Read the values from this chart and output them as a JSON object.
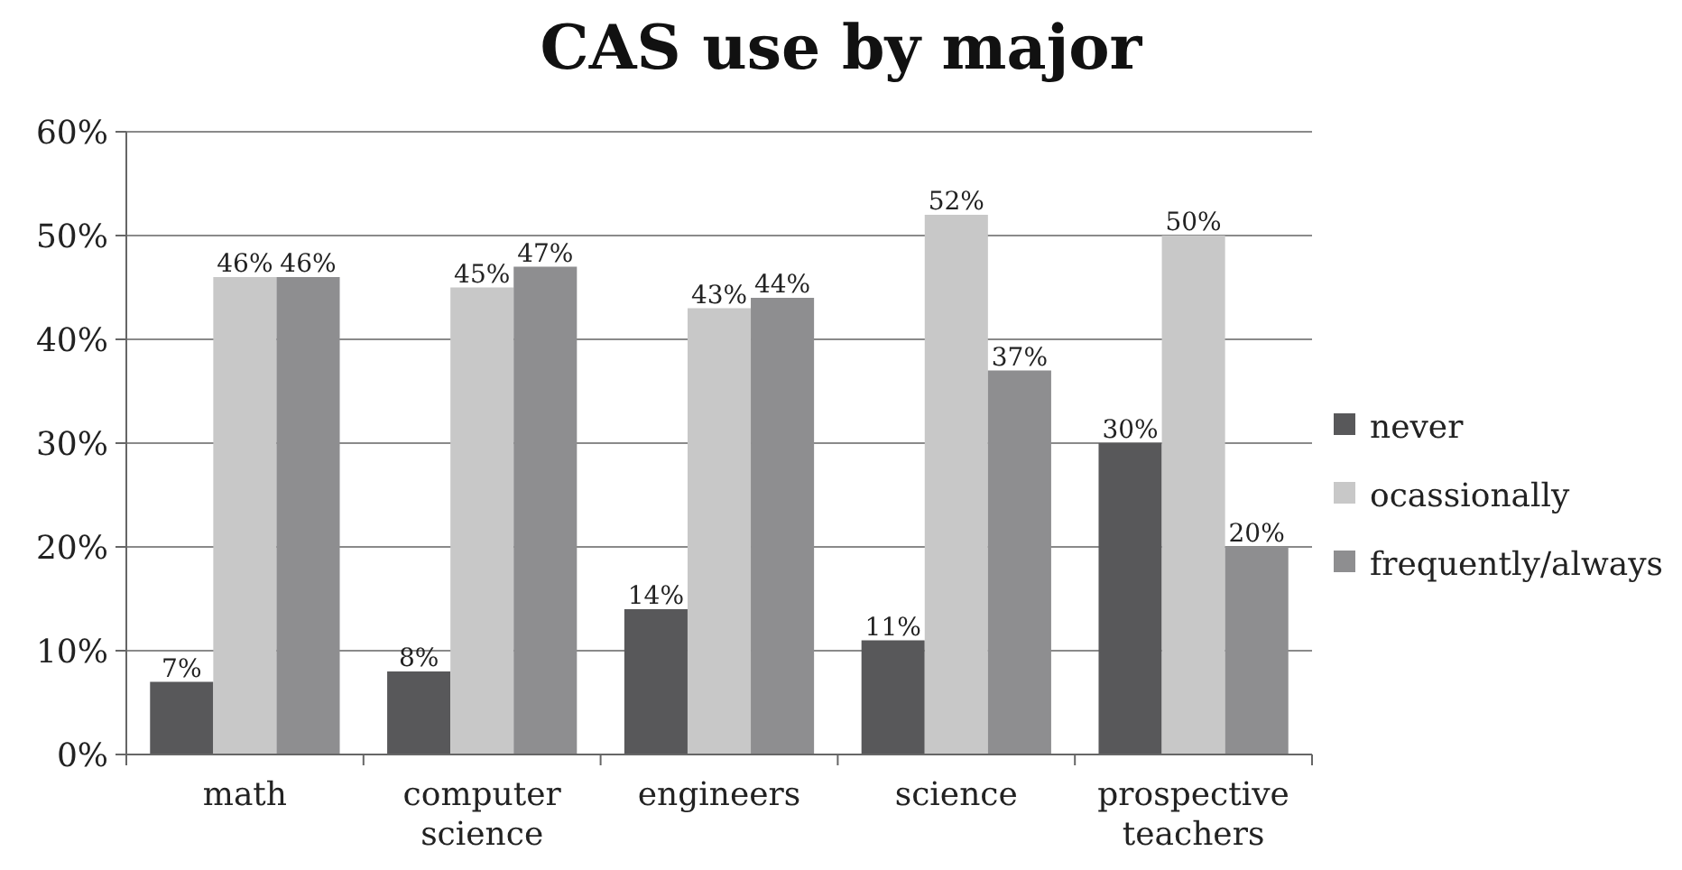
{
  "chart_data": {
    "type": "bar",
    "title": "CAS use by major",
    "categories": [
      "math",
      "computer science",
      "engineers",
      "science",
      "prospective teachers"
    ],
    "series": [
      {
        "name": "never",
        "color": "#58585a",
        "values": [
          7,
          8,
          14,
          11,
          30
        ],
        "value_labels": [
          "7%",
          "8%",
          "14%",
          "11%",
          "30%"
        ]
      },
      {
        "name": "ocassionally",
        "color": "#c8c8c8",
        "values": [
          46,
          45,
          43,
          52,
          50
        ],
        "value_labels": [
          "46%",
          "45%",
          "43%",
          "52%",
          "50%"
        ]
      },
      {
        "name": "frequently/always",
        "color": "#8e8e90",
        "values": [
          46,
          47,
          44,
          37,
          20
        ],
        "value_labels": [
          "46%",
          "47%",
          "44%",
          "37%",
          "20%"
        ]
      }
    ],
    "ylim": [
      0,
      60
    ],
    "yticks": [
      {
        "value": 0,
        "label": "0%"
      },
      {
        "value": 10,
        "label": "10%"
      },
      {
        "value": 20,
        "label": "20%"
      },
      {
        "value": 30,
        "label": "30%"
      },
      {
        "value": 40,
        "label": "40%"
      },
      {
        "value": 50,
        "label": "50%"
      },
      {
        "value": 60,
        "label": "60%"
      }
    ],
    "grid": "y",
    "legend": "right"
  }
}
